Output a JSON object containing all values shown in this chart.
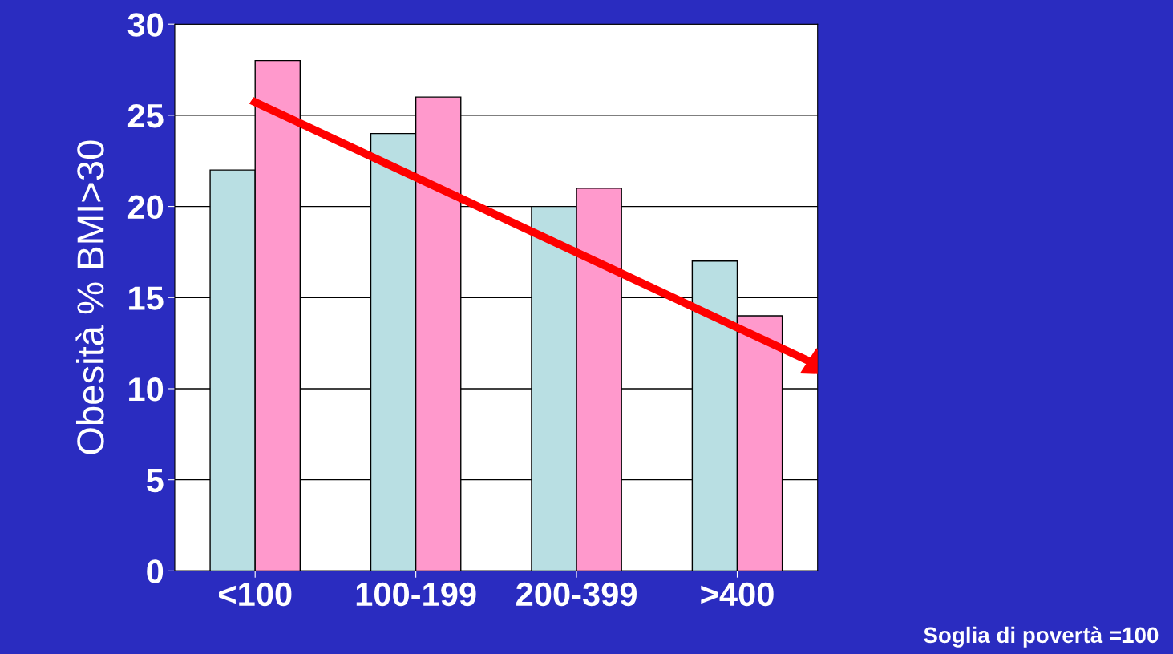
{
  "chart_data": {
    "type": "bar",
    "categories": [
      "<100",
      "100-199",
      "200-399",
      ">400"
    ],
    "series": [
      {
        "color": "#b9dfe3",
        "values": [
          22,
          24,
          20,
          17
        ]
      },
      {
        "color": "#ff99cc",
        "values": [
          28,
          26,
          21,
          14
        ]
      }
    ],
    "ylabel": "Obesità % BMI>30",
    "ylim": [
      0,
      30
    ],
    "yticks": [
      0,
      5,
      10,
      15,
      20,
      25,
      30
    ],
    "grid": "y",
    "annotations": [
      "Soglia di povertà =100"
    ]
  }
}
